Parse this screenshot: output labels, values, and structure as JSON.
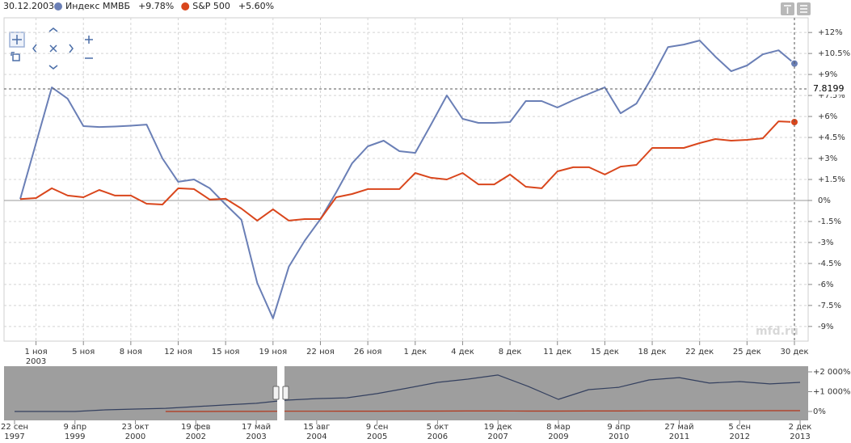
{
  "header": {
    "date": "30.12.2003",
    "watermark": "mfd.ru"
  },
  "chart_data": [
    {
      "type": "line",
      "categories": [
        null,
        "1 ноя",
        null,
        null,
        "5 ноя",
        null,
        null,
        "8 ноя",
        null,
        null,
        "12 ноя",
        null,
        null,
        "15 ноя",
        null,
        null,
        "19 ноя",
        null,
        null,
        "22 ноя",
        null,
        null,
        "26 ноя",
        null,
        null,
        "1 дек",
        null,
        null,
        "4 дек",
        null,
        null,
        "8 дек",
        null,
        null,
        "11 дек",
        null,
        null,
        "15 дек",
        null,
        null,
        "18 дек",
        null,
        null,
        "22 дек",
        null,
        null,
        "25 дек",
        null,
        null,
        "30 дек"
      ],
      "x_year": "2003",
      "series": [
        {
          "name": "Индекс ММВБ",
          "legend_value": "+9.78%",
          "color": "#6a7fb6",
          "values": [
            0.1,
            4.1,
            8.08,
            7.27,
            5.31,
            5.25,
            5.28,
            5.34,
            5.42,
            3.0,
            1.33,
            1.5,
            0.87,
            -0.29,
            -1.38,
            -5.89,
            -8.42,
            -4.73,
            -2.89,
            -1.33,
            0.58,
            2.65,
            3.87,
            4.27,
            3.52,
            3.4,
            5.42,
            7.5,
            5.83,
            5.54,
            5.54,
            5.6,
            7.1,
            7.1,
            6.64,
            7.16,
            7.62,
            8.08,
            6.23,
            6.92,
            8.83,
            10.96,
            11.14,
            11.43,
            10.27,
            9.23,
            9.64,
            10.44,
            10.73,
            9.78
          ]
        },
        {
          "name": "S&P 500",
          "legend_value": "+5.60%",
          "color": "#d9461c",
          "values": [
            0.1,
            0.17,
            0.87,
            0.35,
            0.23,
            0.75,
            0.35,
            0.35,
            -0.23,
            -0.29,
            0.87,
            0.81,
            0.06,
            0.12,
            -0.58,
            -1.44,
            -0.63,
            -1.44,
            -1.33,
            -1.33,
            0.23,
            0.46,
            0.81,
            0.81,
            0.81,
            1.96,
            1.62,
            1.5,
            1.96,
            1.15,
            1.15,
            1.85,
            0.98,
            0.87,
            2.08,
            2.37,
            2.37,
            1.85,
            2.42,
            2.54,
            3.75,
            3.75,
            3.75,
            4.1,
            4.39,
            4.27,
            4.33,
            4.44,
            5.65,
            5.6
          ]
        }
      ],
      "ylim": [
        -10.05,
        13.05
      ],
      "yticks": [
        {
          "value": 12,
          "label": "+12%"
        },
        {
          "value": 10.5,
          "label": "+10.5%"
        },
        {
          "value": 9,
          "label": "+9%"
        },
        {
          "value": 7.5,
          "label": "+7.5%"
        },
        {
          "value": 6,
          "label": "+6%"
        },
        {
          "value": 4.5,
          "label": "+4.5%"
        },
        {
          "value": 3,
          "label": "+3%"
        },
        {
          "value": 1.5,
          "label": "+1.5%"
        },
        {
          "value": 0,
          "label": "0%"
        },
        {
          "value": -1.5,
          "label": "-1.5%"
        },
        {
          "value": -3,
          "label": "-3%"
        },
        {
          "value": -4.5,
          "label": "-4.5%"
        },
        {
          "value": -6,
          "label": "-6%"
        },
        {
          "value": -7.5,
          "label": "-7.5%"
        },
        {
          "value": -9,
          "label": "-9%"
        }
      ],
      "grid": true,
      "crosshair_label": "7.8199"
    },
    {
      "type": "line",
      "categories": [
        "22 сен",
        null,
        "9 апр",
        null,
        "23 окт",
        null,
        "19 фев",
        null,
        "17 май",
        null,
        "15 авг",
        null,
        "9 сен",
        null,
        "5 окт",
        null,
        "19 дек",
        null,
        "8 мар",
        null,
        "9 апр",
        null,
        "27 май",
        null,
        "5 сен",
        null,
        "2 дек"
      ],
      "category_years": [
        "1997",
        null,
        "1999",
        null,
        "2000",
        null,
        "2002",
        null,
        "2003",
        null,
        "2004",
        null,
        "2005",
        null,
        "2006",
        null,
        "2007",
        null,
        "2009",
        null,
        "2010",
        null,
        "2011",
        null,
        "2012",
        null,
        "2013"
      ],
      "series": [
        {
          "name": "Индекс ММВБ",
          "color": "#34405f",
          "values": [
            0,
            0,
            0,
            80,
            120,
            160,
            245,
            330,
            410,
            570,
            650,
            690,
            900,
            1180,
            1470,
            1630,
            1840,
            1270,
            610,
            1100,
            1220,
            1590,
            1710,
            1430,
            1510,
            1390,
            1470
          ]
        },
        {
          "name": "S&P 500",
          "color": "#b3361a",
          "values": [
            null,
            null,
            null,
            null,
            null,
            0,
            0,
            5,
            5,
            10,
            10,
            15,
            15,
            20,
            20,
            25,
            25,
            20,
            20,
            25,
            25,
            30,
            30,
            35,
            35,
            40,
            40
          ]
        }
      ],
      "ylim": [
        -450,
        2285
      ],
      "yticks": [
        {
          "value": 2000,
          "label": "+2 000%"
        },
        {
          "value": 1000,
          "label": "+1 000%"
        },
        {
          "value": 0,
          "label": "0%"
        }
      ]
    }
  ]
}
